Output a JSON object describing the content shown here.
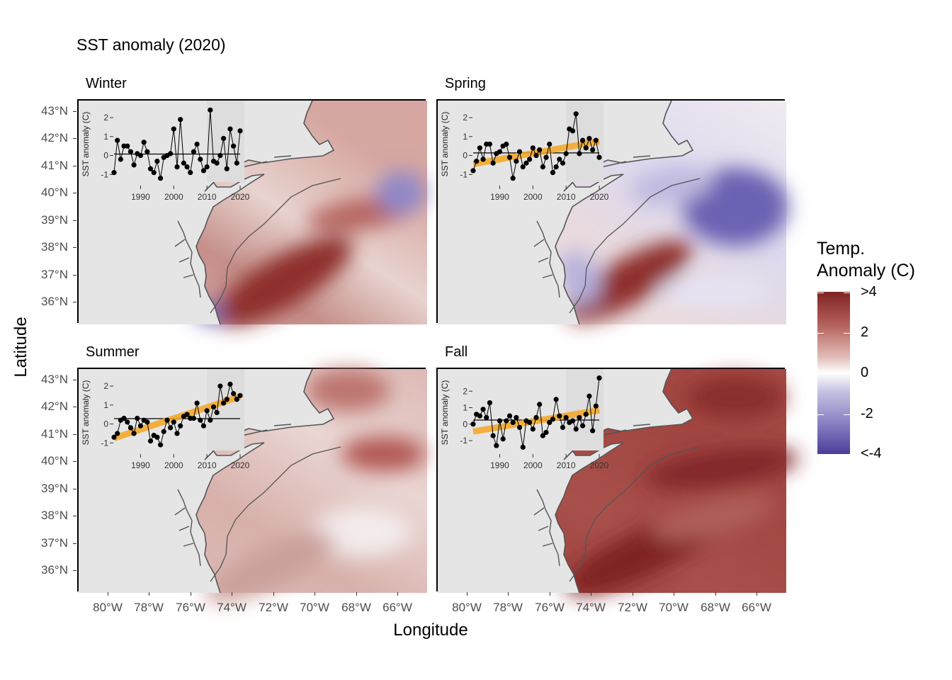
{
  "title": "SST anomaly (2020)",
  "x_axis_title": "Longitude",
  "y_axis_title": "Latitude",
  "lat_ticks": [
    "43°N",
    "42°N",
    "41°N",
    "40°N",
    "39°N",
    "38°N",
    "37°N",
    "36°N"
  ],
  "lon_ticks": [
    "80°W",
    "78°W",
    "76°W",
    "74°W",
    "72°W",
    "70°W",
    "68°W",
    "66°W"
  ],
  "legend": {
    "title_line1": "Temp.",
    "title_line2": "Anomaly (C)",
    "labels": [
      ">4",
      "2",
      "0",
      "-2",
      "<-4"
    ],
    "colors": {
      "high": "#7f2321",
      "mid": "#ffffff",
      "low": "#4a3d9a"
    }
  },
  "inset": {
    "ylabel": "SST anomaly (C)",
    "x_ticks": [
      "1990",
      "2000",
      "2010",
      "2020"
    ],
    "trend_color": "#f5a623"
  },
  "panels": [
    {
      "name": "Winter",
      "inset_y_ticks": [
        "2",
        "1",
        "0",
        "-1"
      ]
    },
    {
      "name": "Spring",
      "inset_y_ticks": [
        "2",
        "1",
        "0",
        "-1"
      ]
    },
    {
      "name": "Summer",
      "inset_y_ticks": [
        "2",
        "1",
        "0",
        "-1"
      ]
    },
    {
      "name": "Fall",
      "inset_y_ticks": [
        "2",
        "1",
        "0",
        "-1"
      ]
    }
  ],
  "chart_data": [
    {
      "type": "line",
      "panel": "Winter",
      "xlabel": "",
      "ylabel": "SST anomaly (C)",
      "xlim": [
        1982,
        2020
      ],
      "ylim": [
        -1.4,
        2.6
      ],
      "trend": false,
      "x": [
        1982,
        1983,
        1984,
        1985,
        1986,
        1987,
        1988,
        1989,
        1990,
        1991,
        1992,
        1993,
        1994,
        1995,
        1996,
        1997,
        1998,
        1999,
        2000,
        2001,
        2002,
        2003,
        2004,
        2005,
        2006,
        2007,
        2008,
        2009,
        2010,
        2011,
        2012,
        2013,
        2014,
        2015,
        2016,
        2017,
        2018,
        2019,
        2020
      ],
      "y": [
        -0.9,
        0.8,
        -0.2,
        0.5,
        0.5,
        0.2,
        -0.5,
        0.1,
        0.0,
        0.7,
        0.2,
        -0.7,
        -0.9,
        -0.3,
        -1.2,
        -0.1,
        0.0,
        0.1,
        1.4,
        -0.6,
        1.9,
        -0.4,
        -0.6,
        -0.9,
        0.2,
        0.6,
        -0.2,
        -0.8,
        -0.6,
        2.4,
        -0.3,
        -0.4,
        0.0,
        0.9,
        -0.7,
        1.4,
        0.5,
        -0.4,
        1.3
      ]
    },
    {
      "type": "line",
      "panel": "Spring",
      "xlabel": "",
      "ylabel": "SST anomaly (C)",
      "xlim": [
        1982,
        2020
      ],
      "ylim": [
        -1.4,
        2.6
      ],
      "trend": true,
      "trend_line": [
        [
          1982,
          -0.45
        ],
        [
          2020,
          0.75
        ]
      ],
      "x": [
        1982,
        1983,
        1984,
        1985,
        1986,
        1987,
        1988,
        1989,
        1990,
        1991,
        1992,
        1993,
        1994,
        1995,
        1996,
        1997,
        1998,
        1999,
        2000,
        2001,
        2002,
        2003,
        2004,
        2005,
        2006,
        2007,
        2008,
        2009,
        2010,
        2011,
        2012,
        2013,
        2014,
        2015,
        2016,
        2017,
        2018,
        2019,
        2020
      ],
      "y": [
        -0.8,
        -0.3,
        0.4,
        -0.2,
        0.6,
        0.6,
        -0.4,
        0.1,
        0.2,
        0.5,
        0.6,
        -0.1,
        -1.2,
        -0.3,
        0.2,
        -0.6,
        -0.4,
        -0.2,
        0.4,
        0.0,
        0.3,
        -0.6,
        -0.1,
        0.6,
        -0.9,
        -0.6,
        -0.2,
        -0.4,
        0.1,
        1.4,
        1.3,
        2.2,
        0.1,
        0.8,
        0.4,
        0.9,
        0.3,
        0.8,
        -0.1
      ]
    },
    {
      "type": "line",
      "panel": "Summer",
      "xlabel": "",
      "ylabel": "SST anomaly (C)",
      "xlim": [
        1982,
        2020
      ],
      "ylim": [
        -1.4,
        2.6
      ],
      "trend": true,
      "trend_line": [
        [
          1982,
          -0.75
        ],
        [
          2020,
          1.45
        ]
      ],
      "x": [
        1982,
        1983,
        1984,
        1985,
        1986,
        1987,
        1988,
        1989,
        1990,
        1991,
        1992,
        1993,
        1994,
        1995,
        1996,
        1997,
        1998,
        1999,
        2000,
        2001,
        2002,
        2003,
        2004,
        2005,
        2006,
        2007,
        2008,
        2009,
        2010,
        2011,
        2012,
        2013,
        2014,
        2015,
        2016,
        2017,
        2018,
        2019,
        2020
      ],
      "y": [
        -0.7,
        -0.5,
        0.2,
        0.3,
        0.1,
        -0.2,
        -0.5,
        0.3,
        -0.1,
        0.2,
        0.1,
        -0.9,
        -0.6,
        -0.7,
        -1.1,
        -0.4,
        0.2,
        -0.2,
        0.1,
        -0.5,
        -0.1,
        0.4,
        0.5,
        0.3,
        0.3,
        1.1,
        0.2,
        -0.1,
        0.7,
        0.2,
        0.9,
        0.6,
        2.0,
        1.1,
        1.3,
        2.1,
        1.6,
        1.3,
        1.5
      ]
    },
    {
      "type": "line",
      "panel": "Fall",
      "xlabel": "",
      "ylabel": "SST anomaly (C)",
      "xlim": [
        1982,
        2020
      ],
      "ylim": [
        -1.6,
        3.0
      ],
      "trend": true,
      "trend_line": [
        [
          1982,
          -0.45
        ],
        [
          2020,
          0.85
        ]
      ],
      "x": [
        1982,
        1983,
        1984,
        1985,
        1986,
        1987,
        1988,
        1989,
        1990,
        1991,
        1992,
        1993,
        1994,
        1995,
        1996,
        1997,
        1998,
        1999,
        2000,
        2001,
        2002,
        2003,
        2004,
        2005,
        2006,
        2007,
        2008,
        2009,
        2010,
        2011,
        2012,
        2013,
        2014,
        2015,
        2016,
        2017,
        2018,
        2019,
        2020
      ],
      "y": [
        0.0,
        0.6,
        0.5,
        0.9,
        0.4,
        1.3,
        -0.7,
        -1.3,
        0.2,
        -0.9,
        0.2,
        0.5,
        0.1,
        0.4,
        -0.2,
        -1.4,
        0.2,
        0.1,
        -0.3,
        0.4,
        1.2,
        -0.7,
        -0.5,
        0.1,
        0.3,
        1.5,
        0.5,
        -0.2,
        0.4,
        0.1,
        0.2,
        -0.3,
        0.4,
        -0.1,
        0.6,
        1.7,
        -0.4,
        1.1,
        2.8
      ]
    }
  ]
}
